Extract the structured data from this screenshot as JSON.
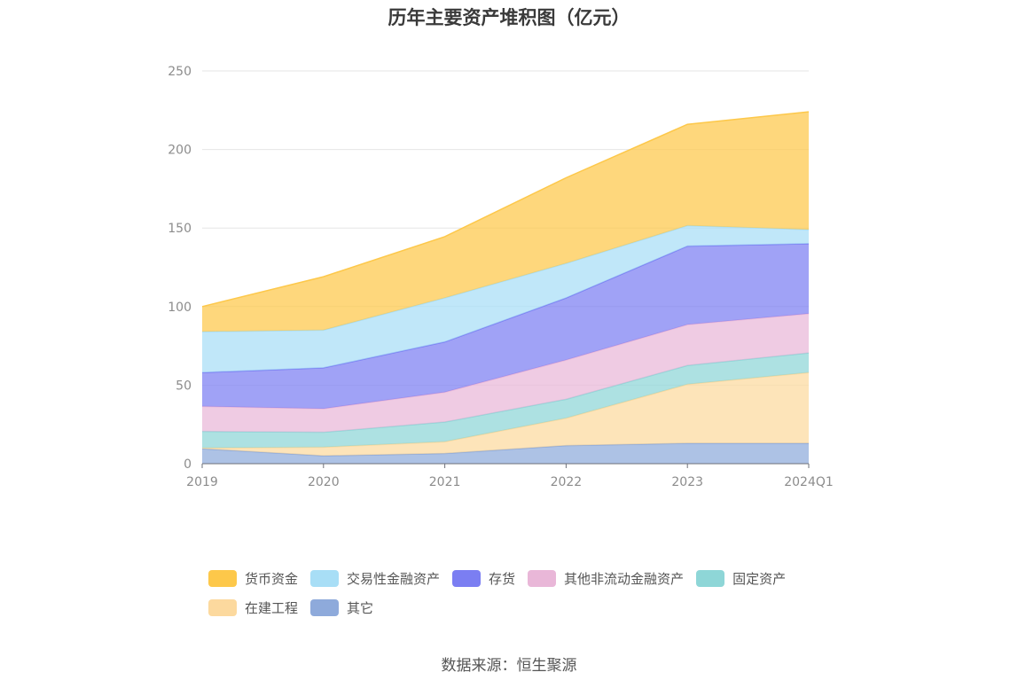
{
  "chart_data": {
    "type": "area",
    "stacked": true,
    "title": "历年主要资产堆积图（亿元）",
    "xlabel": "",
    "ylabel": "",
    "categories": [
      "2019",
      "2020",
      "2021",
      "2022",
      "2023",
      "2024Q1"
    ],
    "ylim": [
      0,
      250
    ],
    "yticks": [
      "0",
      "50",
      "100",
      "150",
      "200",
      "250"
    ],
    "grid": true,
    "legend_position": "bottom",
    "series": [
      {
        "name": "其它",
        "color": "#8eaadb",
        "values": [
          9.5,
          5,
          6.5,
          11.5,
          13,
          13
        ]
      },
      {
        "name": "在建工程",
        "color": "#fcd99e",
        "values": [
          0.5,
          5.5,
          7.5,
          17.5,
          37.5,
          45
        ]
      },
      {
        "name": "固定资产",
        "color": "#8ed6d7",
        "values": [
          10.5,
          9.5,
          12.5,
          12,
          12,
          12.5
        ]
      },
      {
        "name": "其他非流动金融资产",
        "color": "#e9b7d8",
        "values": [
          16,
          15,
          19,
          25,
          26,
          25
        ]
      },
      {
        "name": "存货",
        "color": "#7b7ef2",
        "values": [
          21.5,
          26,
          32,
          39.5,
          50,
          44.5
        ]
      },
      {
        "name": "交易性金融资产",
        "color": "#a8def6",
        "values": [
          26,
          24,
          28,
          22,
          13,
          9
        ]
      },
      {
        "name": "货币资金",
        "color": "#fdc84a",
        "values": [
          16,
          34,
          39,
          54.5,
          64.5,
          75
        ]
      }
    ]
  },
  "legend": {
    "order": [
      "货币资金",
      "交易性金融资产",
      "存货",
      "其他非流动金融资产",
      "固定资产",
      "在建工程",
      "其它"
    ]
  },
  "source": "数据来源：恒生聚源"
}
